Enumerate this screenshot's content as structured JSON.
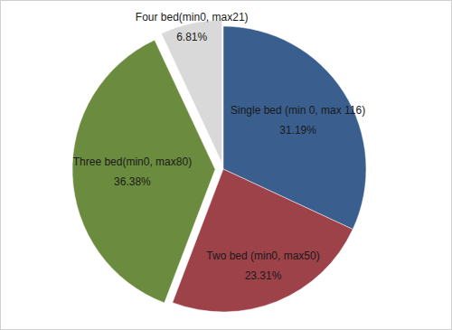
{
  "chart_data": {
    "type": "pie",
    "categories": [
      "Single bed (min 0, max 116)",
      "Two bed (min0, max50)",
      "Three bed(min0, max80)",
      "Four bed(min0, max21)"
    ],
    "values": [
      31.19,
      23.31,
      36.38,
      6.81
    ],
    "value_labels": [
      "31.19%",
      "23.31%",
      "36.38%",
      "6.81%"
    ],
    "colors": [
      "#3a5f8e",
      "#9e4249",
      "#6b8c3e",
      "#d9d9d9"
    ],
    "data_labels": true
  }
}
